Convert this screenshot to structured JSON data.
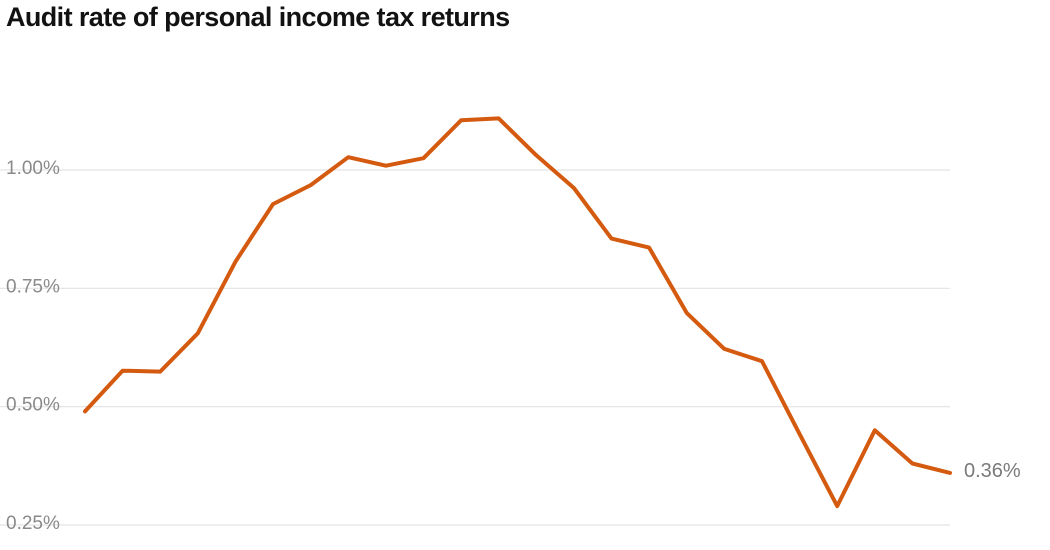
{
  "chart_data": {
    "type": "line",
    "title": "Audit rate of personal income tax returns",
    "xlabel": "",
    "ylabel": "",
    "ylim": [
      0.25,
      1.15
    ],
    "yticks": [
      {
        "value": 0.25,
        "label": "0.25%"
      },
      {
        "value": 0.5,
        "label": "0.50%"
      },
      {
        "value": 0.75,
        "label": "0.75%"
      },
      {
        "value": 1.0,
        "label": "1.00%"
      }
    ],
    "grid": true,
    "series": [
      {
        "color": "#d45a0f",
        "values": [
          0.49,
          0.576,
          0.574,
          0.655,
          0.806,
          0.928,
          0.968,
          1.027,
          1.009,
          1.025,
          1.105,
          1.109,
          1.031,
          0.962,
          0.855,
          0.836,
          0.698,
          0.622,
          0.596,
          0.442,
          0.29,
          0.45,
          0.38,
          0.36
        ],
        "end_label": "0.36%"
      }
    ]
  }
}
